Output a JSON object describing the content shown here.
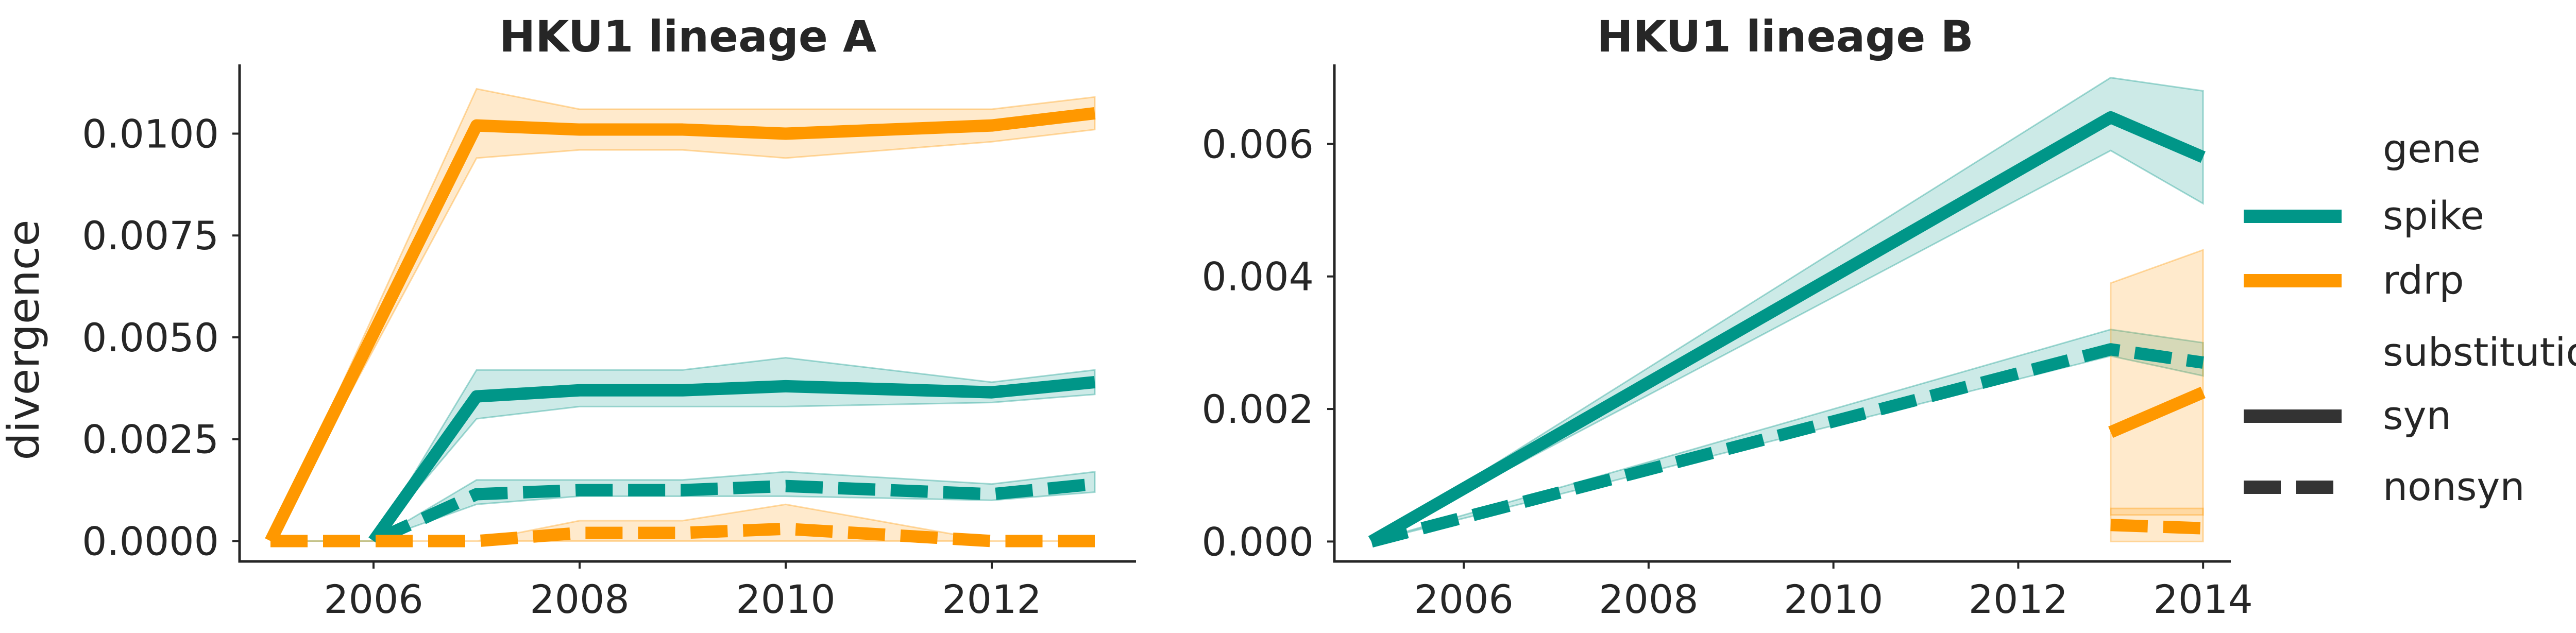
{
  "chart_data": [
    {
      "type": "line",
      "title": "HKU1 lineage A",
      "xlabel": "",
      "ylabel": "divergence",
      "xlim": [
        2004.7,
        2013.4
      ],
      "ylim": [
        -0.0005,
        0.0117
      ],
      "xticks": [
        2006,
        2008,
        2010,
        2012
      ],
      "xtick_labels": [
        "2006",
        "2008",
        "2010",
        "2012"
      ],
      "yticks": [
        0.0,
        0.0025,
        0.005,
        0.0075,
        0.01
      ],
      "ytick_labels": [
        "0.0000",
        "0.0025",
        "0.0050",
        "0.0075",
        "0.0100"
      ],
      "series": [
        {
          "gene": "rdrp",
          "substitution": "syn",
          "x": [
            2005,
            2007,
            2008,
            2009,
            2010,
            2012,
            2013
          ],
          "y": [
            0.0,
            0.0102,
            0.0101,
            0.0101,
            0.01,
            0.0102,
            0.0105
          ],
          "ci_low": [
            0.0,
            0.0094,
            0.0096,
            0.0096,
            0.0094,
            0.0098,
            0.0101
          ],
          "ci_high": [
            0.0,
            0.0111,
            0.0106,
            0.0106,
            0.0106,
            0.0106,
            0.0109
          ]
        },
        {
          "gene": "spike",
          "substitution": "syn",
          "x": [
            2006,
            2007,
            2008,
            2009,
            2010,
            2012,
            2013
          ],
          "y": [
            0.0,
            0.00355,
            0.0037,
            0.0037,
            0.0038,
            0.00365,
            0.0039
          ],
          "ci_low": [
            0.0,
            0.003,
            0.0033,
            0.0033,
            0.0033,
            0.0034,
            0.0036
          ],
          "ci_high": [
            0.0,
            0.0042,
            0.0042,
            0.0042,
            0.0045,
            0.0039,
            0.0042
          ]
        },
        {
          "gene": "spike",
          "substitution": "nonsyn",
          "x": [
            2005,
            2006,
            2007,
            2008,
            2009,
            2010,
            2012,
            2013
          ],
          "y": [
            0.0,
            0.0,
            0.00115,
            0.00125,
            0.00125,
            0.00135,
            0.00115,
            0.0014
          ],
          "ci_low": [
            0.0,
            0.0,
            0.0009,
            0.0011,
            0.0011,
            0.0011,
            0.001,
            0.0012
          ],
          "ci_high": [
            0.0,
            0.0,
            0.0015,
            0.0015,
            0.0015,
            0.0017,
            0.0014,
            0.0017
          ]
        },
        {
          "gene": "rdrp",
          "substitution": "nonsyn",
          "x": [
            2005,
            2007,
            2008,
            2009,
            2010,
            2012,
            2013
          ],
          "y": [
            0.0,
            0.0,
            0.0002,
            0.0002,
            0.0003,
            0.0,
            0.0
          ],
          "ci_low": [
            0.0,
            0.0,
            0.0,
            0.0,
            0.0,
            0.0,
            0.0
          ],
          "ci_high": [
            0.0,
            0.0,
            0.0005,
            0.0005,
            0.0009,
            0.0,
            0.0
          ]
        }
      ]
    },
    {
      "type": "line",
      "title": "HKU1 lineage B",
      "xlabel": "",
      "ylabel": "",
      "xlim": [
        2004.6,
        2014.3
      ],
      "ylim": [
        -0.0003,
        0.0072
      ],
      "xticks": [
        2006,
        2008,
        2010,
        2012,
        2014
      ],
      "xtick_labels": [
        "2006",
        "2008",
        "2010",
        "2012",
        "2014"
      ],
      "yticks": [
        0.0,
        0.002,
        0.004,
        0.006
      ],
      "ytick_labels": [
        "0.000",
        "0.002",
        "0.004",
        "0.006"
      ],
      "series": [
        {
          "gene": "spike",
          "substitution": "syn",
          "x": [
            2005,
            2013,
            2014
          ],
          "y": [
            0.0,
            0.0064,
            0.0058
          ],
          "ci_low": [
            0.0,
            0.0059,
            0.0051
          ],
          "ci_high": [
            0.0,
            0.007,
            0.0068
          ]
        },
        {
          "gene": "spike",
          "substitution": "nonsyn",
          "x": [
            2005,
            2013,
            2014
          ],
          "y": [
            0.0,
            0.0029,
            0.0027
          ],
          "ci_low": [
            0.0,
            0.0028,
            0.0025
          ],
          "ci_high": [
            0.0,
            0.0032,
            0.003
          ]
        },
        {
          "gene": "rdrp",
          "substitution": "syn",
          "x": [
            2013,
            2014
          ],
          "y": [
            0.00165,
            0.00225
          ],
          "ci_low": [
            0.0004,
            0.0004
          ],
          "ci_high": [
            0.0039,
            0.0044
          ]
        },
        {
          "gene": "rdrp",
          "substitution": "nonsyn",
          "x": [
            2013,
            2014
          ],
          "y": [
            0.00025,
            0.0002
          ],
          "ci_low": [
            0.0,
            0.0
          ],
          "ci_high": [
            0.0005,
            0.0005
          ]
        }
      ]
    }
  ],
  "legend": {
    "placement": "right",
    "gene_heading": "gene",
    "gene_items": [
      "spike",
      "rdrp"
    ],
    "substitution_heading": "substitution",
    "substitution_items": [
      "syn",
      "nonsyn"
    ]
  },
  "colors": {
    "spike": "#009688",
    "rdrp": "#ff9800",
    "axis": "#262626",
    "legend_line": "#333333"
  }
}
